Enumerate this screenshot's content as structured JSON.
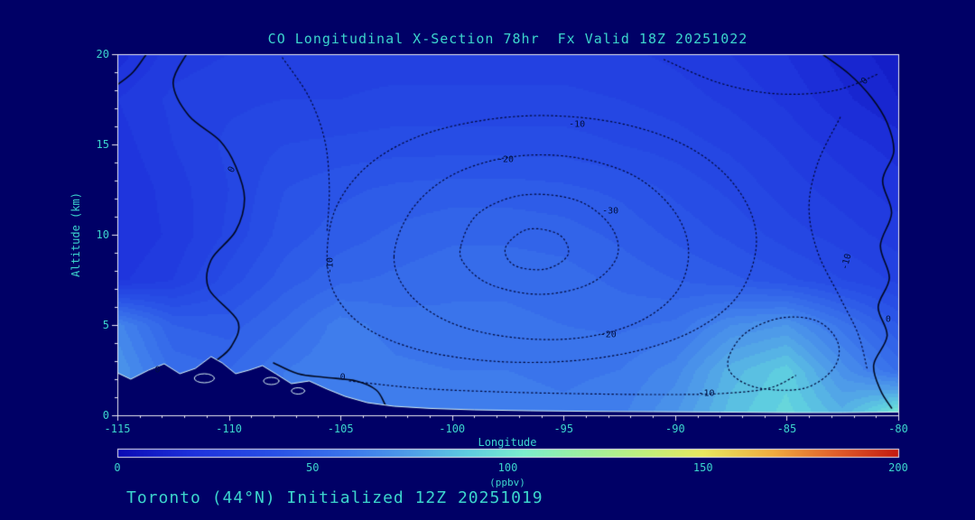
{
  "window": {
    "background": "#000066"
  },
  "header": {
    "title": "CO Longitudinal X-Section 78hr  Fx Valid 18Z 20251022"
  },
  "footer": {
    "init_text": "Toronto (44°N) Initialized 12Z 20251019"
  },
  "chart_data": {
    "type": "heatmap",
    "title": "CO Longitudinal X-Section 78hr  Fx Valid 18Z 20251022",
    "xlabel": "Longitude",
    "ylabel": "Altitude (km)",
    "xlim": [
      -115,
      -80
    ],
    "ylim": [
      0,
      20
    ],
    "x_ticks": [
      -115,
      -110,
      -105,
      -100,
      -95,
      -90,
      -85,
      -80
    ],
    "y_ticks": [
      0,
      5,
      10,
      15,
      20
    ],
    "x_minor_step": 1,
    "y_minor_step": 1,
    "grid_lons": [
      -115,
      -112.5,
      -110,
      -107.5,
      -105,
      -102.5,
      -100,
      -97.5,
      -95,
      -92.5,
      -90,
      -87.5,
      -85,
      -82.5,
      -80
    ],
    "grid_alts": [
      20,
      17.5,
      15,
      12.5,
      10,
      7.5,
      5,
      2.5,
      0
    ],
    "values_ppbv": [
      [
        18,
        26,
        28,
        29,
        30,
        30,
        30,
        30,
        30,
        29,
        27,
        24,
        20,
        14,
        10
      ],
      [
        24,
        29,
        31,
        32,
        32,
        33,
        33,
        33,
        33,
        32,
        30,
        27,
        23,
        17,
        12
      ],
      [
        22,
        28,
        33,
        36,
        37,
        38,
        38,
        38,
        38,
        36,
        34,
        31,
        27,
        22,
        18
      ],
      [
        20,
        26,
        32,
        40,
        43,
        45,
        46,
        46,
        45,
        43,
        39,
        35,
        30,
        26,
        22
      ],
      [
        20,
        25,
        33,
        42,
        46,
        49,
        51,
        51,
        50,
        47,
        43,
        39,
        34,
        30,
        26
      ],
      [
        23,
        28,
        38,
        46,
        51,
        53,
        55,
        55,
        54,
        51,
        48,
        45,
        41,
        36,
        31
      ],
      [
        66,
        48,
        46,
        53,
        62,
        58,
        57,
        57,
        56,
        55,
        57,
        68,
        72,
        58,
        44
      ],
      [
        72,
        55,
        52,
        60,
        64,
        61,
        60,
        60,
        59,
        60,
        66,
        82,
        90,
        70,
        55
      ],
      [
        70,
        58,
        56,
        62,
        64,
        62,
        62,
        62,
        61,
        63,
        72,
        86,
        94,
        82,
        104
      ]
    ],
    "band_step": 4,
    "colormap_stops": [
      [
        0.0,
        "#0a0ab4"
      ],
      [
        0.1,
        "#1e32dc"
      ],
      [
        0.2,
        "#2850e6"
      ],
      [
        0.3,
        "#3c78ec"
      ],
      [
        0.38,
        "#50a0e8"
      ],
      [
        0.45,
        "#5ecde0"
      ],
      [
        0.52,
        "#7ceecd"
      ],
      [
        0.58,
        "#96f0a8"
      ],
      [
        0.68,
        "#c3ef7a"
      ],
      [
        0.75,
        "#e8e85f"
      ],
      [
        0.84,
        "#f0ab3f"
      ],
      [
        0.92,
        "#e25f2a"
      ],
      [
        1.0,
        "#c41a10"
      ]
    ],
    "terrain": {
      "color": "#000066",
      "outline": "#d8f4f4",
      "points": [
        [
          -115,
          2.35
        ],
        [
          -114.4,
          2.0
        ],
        [
          -113.6,
          2.5
        ],
        [
          -112.9,
          2.85
        ],
        [
          -112.2,
          2.3
        ],
        [
          -111.5,
          2.6
        ],
        [
          -110.8,
          3.25
        ],
        [
          -110.3,
          2.9
        ],
        [
          -109.7,
          2.3
        ],
        [
          -109.1,
          2.5
        ],
        [
          -108.5,
          2.75
        ],
        [
          -107.9,
          2.3
        ],
        [
          -107.2,
          1.75
        ],
        [
          -106.4,
          1.9
        ],
        [
          -105.6,
          1.45
        ],
        [
          -104.8,
          1.05
        ],
        [
          -103.8,
          0.7
        ],
        [
          -102.6,
          0.5
        ],
        [
          -101.0,
          0.38
        ],
        [
          -99.0,
          0.3
        ],
        [
          -96.5,
          0.25
        ],
        [
          -94.0,
          0.22
        ],
        [
          -91.0,
          0.2
        ],
        [
          -88.0,
          0.18
        ],
        [
          -85.0,
          0.15
        ],
        [
          -82.5,
          0.15
        ],
        [
          -80,
          0.18
        ]
      ],
      "islands": [
        {
          "lon": -111.1,
          "alt": 2.05,
          "w": 0.9,
          "h": 0.5
        },
        {
          "lon": -108.1,
          "alt": 1.9,
          "w": 0.7,
          "h": 0.4
        },
        {
          "lon": -106.9,
          "alt": 1.35,
          "w": 0.6,
          "h": 0.35
        }
      ]
    },
    "contours": [
      {
        "level": "-10",
        "style": "dotted",
        "closed": true,
        "points": [
          [
            -105.6,
            8.8
          ],
          [
            -105.2,
            11.5
          ],
          [
            -103.8,
            13.8
          ],
          [
            -101.6,
            15.4
          ],
          [
            -98.8,
            16.3
          ],
          [
            -95.8,
            16.6
          ],
          [
            -92.6,
            16.2
          ],
          [
            -89.8,
            15.1
          ],
          [
            -87.8,
            13.4
          ],
          [
            -86.6,
            11.2
          ],
          [
            -86.4,
            9.0
          ],
          [
            -87.2,
            6.6
          ],
          [
            -89.0,
            4.8
          ],
          [
            -91.6,
            3.6
          ],
          [
            -94.8,
            3.0
          ],
          [
            -98.2,
            3.0
          ],
          [
            -101.4,
            3.6
          ],
          [
            -103.8,
            4.8
          ],
          [
            -105.2,
            6.6
          ]
        ]
      },
      {
        "level": "-10",
        "style": "dotted",
        "closed": false,
        "points": [
          [
            -107.6,
            19.8
          ],
          [
            -106.4,
            17.6
          ],
          [
            -105.7,
            15.2
          ],
          [
            -105.5,
            12.6
          ],
          [
            -105.6,
            10.2
          ]
        ]
      },
      {
        "level": "-20",
        "style": "dotted",
        "closed": true,
        "points": [
          [
            -102.6,
            8.8
          ],
          [
            -101.8,
            11.4
          ],
          [
            -100.0,
            13.3
          ],
          [
            -97.4,
            14.3
          ],
          [
            -94.6,
            14.3
          ],
          [
            -91.9,
            13.3
          ],
          [
            -90.1,
            11.4
          ],
          [
            -89.4,
            9.2
          ],
          [
            -89.9,
            6.9
          ],
          [
            -91.6,
            5.2
          ],
          [
            -94.2,
            4.3
          ],
          [
            -97.2,
            4.3
          ],
          [
            -100.0,
            5.1
          ],
          [
            -101.9,
            6.7
          ]
        ]
      },
      {
        "level": "-30",
        "style": "dotted",
        "closed": true,
        "points": [
          [
            -99.6,
            9.4
          ],
          [
            -98.8,
            11.2
          ],
          [
            -96.8,
            12.2
          ],
          [
            -94.4,
            11.9
          ],
          [
            -92.9,
            10.5
          ],
          [
            -92.6,
            8.8
          ],
          [
            -93.8,
            7.3
          ],
          [
            -96.0,
            6.7
          ],
          [
            -98.2,
            7.2
          ],
          [
            -99.4,
            8.3
          ]
        ]
      },
      {
        "level": "-30",
        "style": "dotted",
        "closed": true,
        "points": [
          [
            -97.6,
            9.3
          ],
          [
            -96.6,
            10.3
          ],
          [
            -95.2,
            10.0
          ],
          [
            -94.8,
            8.9
          ],
          [
            -95.8,
            8.1
          ],
          [
            -97.2,
            8.3
          ]
        ]
      },
      {
        "level": "-10",
        "style": "dotted",
        "closed": false,
        "points": [
          [
            -82.6,
            16.5
          ],
          [
            -83.6,
            14.0
          ],
          [
            -84.0,
            11.5
          ],
          [
            -83.6,
            9.0
          ],
          [
            -82.6,
            6.5
          ],
          [
            -81.8,
            4.5
          ],
          [
            -81.4,
            2.6
          ]
        ]
      },
      {
        "level": "-10",
        "style": "dotted",
        "closed": false,
        "points": [
          [
            -104.6,
            1.9
          ],
          [
            -101.5,
            1.5
          ],
          [
            -98.0,
            1.3
          ],
          [
            -94.5,
            1.2
          ],
          [
            -91.0,
            1.15
          ],
          [
            -88.0,
            1.2
          ],
          [
            -85.8,
            1.5
          ],
          [
            -84.6,
            2.2
          ]
        ]
      },
      {
        "level": "-10",
        "style": "dotted",
        "closed": false,
        "points": [
          [
            -90.5,
            19.7
          ],
          [
            -88.0,
            18.4
          ],
          [
            -85.4,
            17.8
          ],
          [
            -82.8,
            18.0
          ],
          [
            -80.9,
            18.9
          ]
        ]
      },
      {
        "level": "10",
        "style": "dotted",
        "closed": true,
        "points": [
          [
            -87.6,
            3.2
          ],
          [
            -86.8,
            4.6
          ],
          [
            -85.2,
            5.4
          ],
          [
            -83.6,
            5.2
          ],
          [
            -82.7,
            4.0
          ],
          [
            -82.9,
            2.6
          ],
          [
            -84.2,
            1.5
          ],
          [
            -86.2,
            1.5
          ],
          [
            -87.4,
            2.2
          ]
        ]
      },
      {
        "level": "0",
        "style": "solid",
        "closed": false,
        "points": [
          [
            -111.9,
            20
          ],
          [
            -112.5,
            18.4
          ],
          [
            -111.8,
            16.6
          ],
          [
            -110.4,
            15.2
          ],
          [
            -109.7,
            13.8
          ],
          [
            -109.3,
            12.0
          ],
          [
            -109.7,
            10.2
          ],
          [
            -110.8,
            8.6
          ],
          [
            -110.9,
            7.0
          ],
          [
            -109.6,
            5.2
          ],
          [
            -109.9,
            3.8
          ],
          [
            -110.6,
            3.0
          ]
        ]
      },
      {
        "level": "0",
        "style": "solid",
        "closed": false,
        "points": [
          [
            -115,
            18.3
          ],
          [
            -114.3,
            19.0
          ],
          [
            -113.7,
            20
          ]
        ]
      },
      {
        "level": "0",
        "style": "solid",
        "closed": false,
        "points": [
          [
            -83.4,
            20
          ],
          [
            -82.2,
            18.9
          ],
          [
            -81.2,
            17.6
          ],
          [
            -80.5,
            16.2
          ],
          [
            -80.2,
            14.6
          ],
          [
            -80.7,
            13.0
          ],
          [
            -80.3,
            11.2
          ],
          [
            -80.8,
            9.4
          ],
          [
            -80.4,
            7.6
          ],
          [
            -80.9,
            6.0
          ],
          [
            -80.5,
            4.4
          ],
          [
            -81.1,
            2.8
          ],
          [
            -80.8,
            1.4
          ],
          [
            -80.3,
            0.4
          ]
        ]
      },
      {
        "level": "0",
        "style": "solid",
        "closed": false,
        "points": [
          [
            -108.0,
            2.9
          ],
          [
            -106.9,
            2.3
          ],
          [
            -105.7,
            2.1
          ],
          [
            -104.3,
            1.9
          ],
          [
            -103.4,
            1.4
          ],
          [
            -103.0,
            0.6
          ],
          [
            -102.8,
            0.1
          ]
        ]
      }
    ],
    "contour_labels": [
      {
        "text": "-10",
        "lon": -94.4,
        "alt": 16.1,
        "rotate": 0
      },
      {
        "text": "-20",
        "lon": -97.6,
        "alt": 14.15,
        "rotate": 0
      },
      {
        "text": "-30",
        "lon": -92.9,
        "alt": 11.3,
        "rotate": 0
      },
      {
        "text": "-10",
        "lon": -105.45,
        "alt": 8.3,
        "rotate": -90
      },
      {
        "text": "-10",
        "lon": -82.3,
        "alt": 8.5,
        "rotate": -75
      },
      {
        "text": "-20",
        "lon": -93.0,
        "alt": 4.45,
        "rotate": 0
      },
      {
        "text": "-10",
        "lon": -88.6,
        "alt": 1.2,
        "rotate": 0
      },
      {
        "text": "0",
        "lon": -109.85,
        "alt": 13.6,
        "rotate": -60
      },
      {
        "text": "0",
        "lon": -104.9,
        "alt": 2.1,
        "rotate": 0
      },
      {
        "text": "0",
        "lon": -113.2,
        "alt": 2.5,
        "rotate": 0
      },
      {
        "text": "0",
        "lon": -80.45,
        "alt": 5.3,
        "rotate": 0
      },
      {
        "text": "0",
        "lon": -81.5,
        "alt": 18.5,
        "rotate": -45
      }
    ],
    "colorbar": {
      "min": 0,
      "max": 200,
      "ticks": [
        0,
        50,
        100,
        150,
        200
      ],
      "label": "(ppbv)"
    },
    "colors": {
      "text": "#3cd5cd",
      "axis": "#e8e8f0",
      "contour_solid": "#000820",
      "contour_dotted": "#000838"
    }
  }
}
